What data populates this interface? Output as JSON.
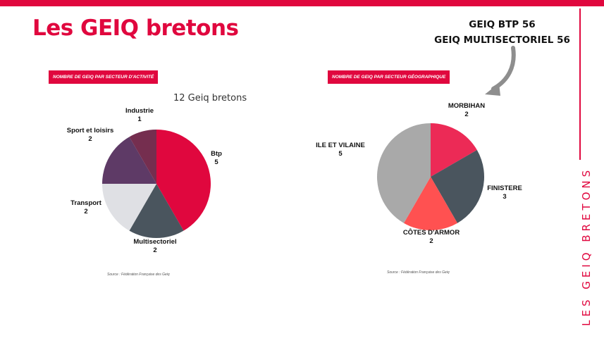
{
  "title": "Les GEIQ bretons",
  "callout": {
    "line1": "GEIQ BTP 56",
    "line2": "GEIQ MULTISECTORIEL 56"
  },
  "side_label": "LES GEIQ BRETONS",
  "colors": {
    "accent": "#e0073e"
  },
  "chart_data": [
    {
      "type": "pie",
      "tag": "NOMBRE DE GEIQ PAR SECTEUR D'ACTIVITÉ",
      "title": "12 Geiq bretons",
      "categories": [
        "Btp",
        "Multisectoriel",
        "Transport",
        "Sport et loisirs",
        "Industrie"
      ],
      "values": [
        5,
        2,
        2,
        2,
        1
      ],
      "colors": [
        "#e0073e",
        "#4a555e",
        "#dfe0e4",
        "#5e3a66",
        "#752e4f"
      ],
      "source": "Source : Fédération Française des Geiq"
    },
    {
      "type": "pie",
      "tag": "NOMBRE DE GEIQ PAR SECTEUR GÉOGRAPHIQUE",
      "title": "",
      "categories": [
        "MORBIHAN",
        "FINISTERE",
        "CÔTES D'ARMOR",
        "ILE ET VILAINE"
      ],
      "values": [
        2,
        3,
        2,
        5
      ],
      "colors": [
        "#ec2a56",
        "#4a555e",
        "#ff5151",
        "#a9a9a9"
      ],
      "source": "Source : Fédération Française des Geiq"
    }
  ]
}
